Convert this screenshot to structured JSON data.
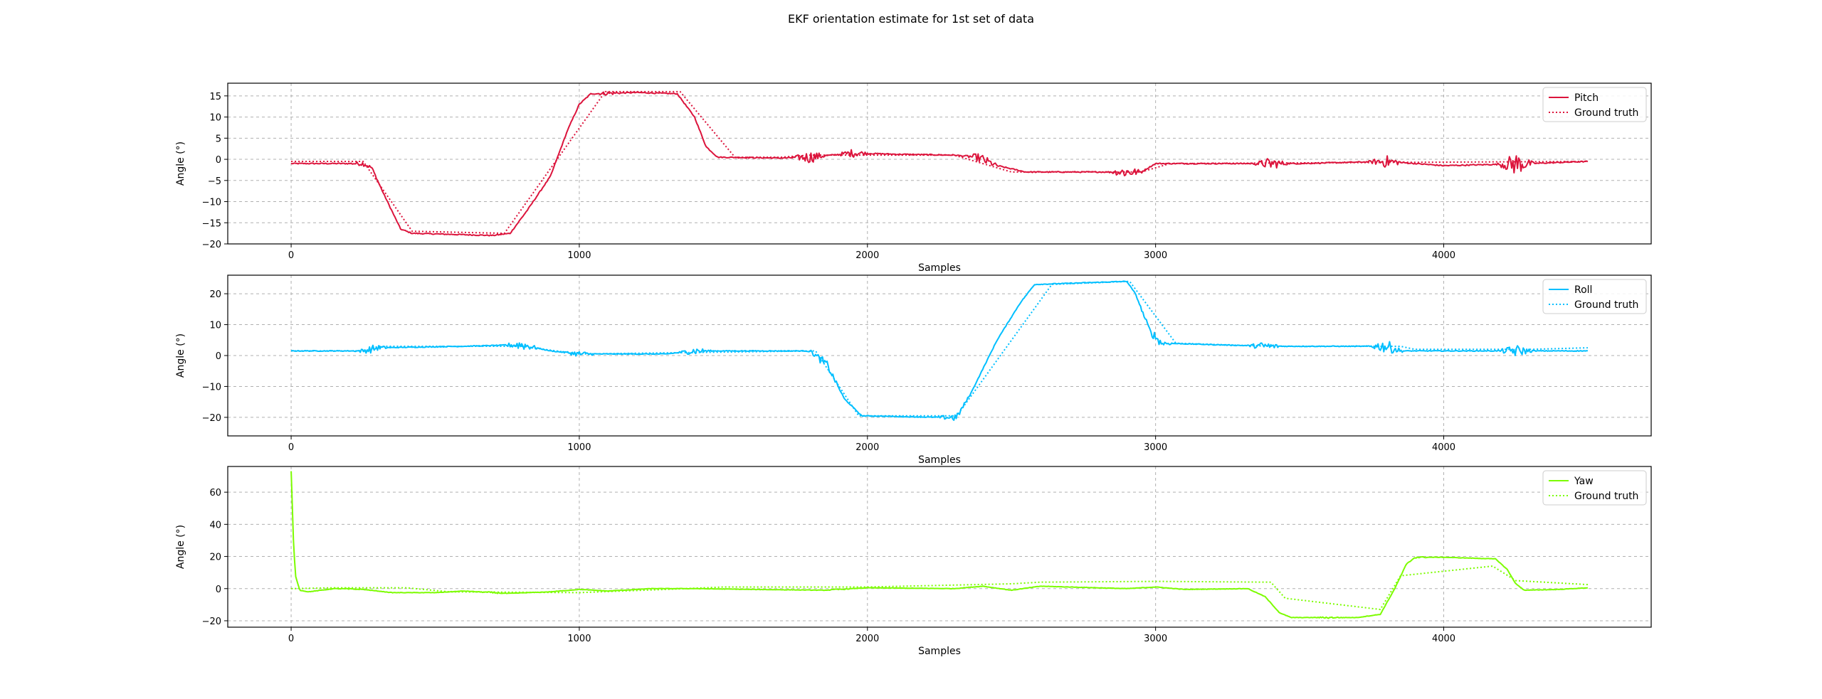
{
  "title": "EKF orientation estimate for 1st set of data",
  "chart_data": [
    {
      "type": "line",
      "xlabel": "Samples",
      "ylabel": "Angle (°)",
      "xlim": [
        -220,
        4720
      ],
      "ylim": [
        -20,
        18
      ],
      "xticks": [
        0,
        1000,
        2000,
        3000,
        4000
      ],
      "yticks": [
        -20,
        -15,
        -10,
        -5,
        0,
        5,
        10,
        15
      ],
      "grid": true,
      "legend_position": "top-right",
      "series": [
        {
          "name": "Pitch",
          "color": "#dc143c",
          "style": "solid",
          "noise": [
            [
              250,
              1.2
            ],
            [
              1100,
              1.0
            ],
            [
              1800,
              3.0
            ],
            [
              1950,
              2.0
            ],
            [
              2400,
              2.5
            ],
            [
              2900,
              3.0
            ],
            [
              3400,
              3.0
            ],
            [
              3800,
              3.0
            ],
            [
              4250,
              5.5
            ]
          ],
          "points": [
            [
              0,
              -1
            ],
            [
              250,
              -1
            ],
            [
              280,
              -2
            ],
            [
              320,
              -8
            ],
            [
              380,
              -16.5
            ],
            [
              420,
              -17.5
            ],
            [
              700,
              -18
            ],
            [
              760,
              -17.5
            ],
            [
              820,
              -12
            ],
            [
              900,
              -4
            ],
            [
              960,
              7
            ],
            [
              1000,
              13
            ],
            [
              1040,
              15.5
            ],
            [
              1200,
              15.8
            ],
            [
              1340,
              15.5
            ],
            [
              1400,
              10
            ],
            [
              1440,
              3
            ],
            [
              1480,
              0.5
            ],
            [
              1700,
              0.3
            ],
            [
              1800,
              0.5
            ],
            [
              1950,
              1.5
            ],
            [
              2100,
              1.2
            ],
            [
              2300,
              1.0
            ],
            [
              2380,
              0.5
            ],
            [
              2450,
              -1.5
            ],
            [
              2550,
              -3
            ],
            [
              2700,
              -3
            ],
            [
              2950,
              -3
            ],
            [
              3000,
              -1
            ],
            [
              3500,
              -1
            ],
            [
              3800,
              -0.5
            ],
            [
              4000,
              -1.5
            ],
            [
              4300,
              -1
            ],
            [
              4500,
              -0.5
            ]
          ]
        },
        {
          "name": "Ground truth",
          "color": "#dc143c",
          "style": "dotted",
          "points": [
            [
              0,
              -0.5
            ],
            [
              250,
              -0.5
            ],
            [
              420,
              -17
            ],
            [
              740,
              -17.5
            ],
            [
              1090,
              16
            ],
            [
              1350,
              16
            ],
            [
              1540,
              0.5
            ],
            [
              1700,
              0.5
            ],
            [
              1800,
              1
            ],
            [
              2300,
              1
            ],
            [
              2500,
              -3
            ],
            [
              2950,
              -3
            ],
            [
              3050,
              -1
            ],
            [
              4500,
              -0.5
            ]
          ]
        }
      ]
    },
    {
      "type": "line",
      "xlabel": "Samples",
      "ylabel": "Angle (°)",
      "xlim": [
        -220,
        4720
      ],
      "ylim": [
        -26,
        26
      ],
      "xticks": [
        0,
        1000,
        2000,
        3000,
        4000
      ],
      "yticks": [
        -20,
        -10,
        0,
        10,
        20
      ],
      "grid": true,
      "legend_position": "top-right",
      "series": [
        {
          "name": "Roll",
          "color": "#00bfff",
          "style": "solid",
          "noise": [
            [
              280,
              2.5
            ],
            [
              800,
              3.5
            ],
            [
              1000,
              2.0
            ],
            [
              1400,
              2.5
            ],
            [
              1850,
              3.0
            ],
            [
              2300,
              2.5
            ],
            [
              3000,
              3.0
            ],
            [
              3380,
              3.0
            ],
            [
              3800,
              4.5
            ],
            [
              4250,
              4.0
            ]
          ],
          "points": [
            [
              0,
              1.5
            ],
            [
              250,
              1.5
            ],
            [
              300,
              2.5
            ],
            [
              600,
              3
            ],
            [
              800,
              3.5
            ],
            [
              900,
              1.5
            ],
            [
              1000,
              0.5
            ],
            [
              1300,
              0.5
            ],
            [
              1400,
              1.5
            ],
            [
              1800,
              1.5
            ],
            [
              1860,
              -3
            ],
            [
              1920,
              -14
            ],
            [
              1980,
              -19.5
            ],
            [
              2250,
              -20
            ],
            [
              2310,
              -20
            ],
            [
              2360,
              -12
            ],
            [
              2450,
              5
            ],
            [
              2530,
              17
            ],
            [
              2580,
              23
            ],
            [
              2900,
              24
            ],
            [
              2930,
              20
            ],
            [
              2980,
              8
            ],
            [
              3020,
              4
            ],
            [
              3400,
              3
            ],
            [
              3800,
              3
            ],
            [
              3850,
              1.5
            ],
            [
              4300,
              1.5
            ],
            [
              4500,
              1.5
            ]
          ]
        },
        {
          "name": "Ground truth",
          "color": "#00bfff",
          "style": "dotted",
          "points": [
            [
              0,
              1.5
            ],
            [
              270,
              1.5
            ],
            [
              300,
              3
            ],
            [
              800,
              3
            ],
            [
              1000,
              0.5
            ],
            [
              1400,
              1
            ],
            [
              1820,
              1.5
            ],
            [
              1970,
              -19.5
            ],
            [
              2310,
              -19.5
            ],
            [
              2640,
              23
            ],
            [
              2910,
              24
            ],
            [
              3070,
              4
            ],
            [
              3400,
              3
            ],
            [
              3850,
              3
            ],
            [
              3900,
              2
            ],
            [
              4300,
              2
            ],
            [
              4500,
              2.5
            ]
          ]
        }
      ]
    },
    {
      "type": "line",
      "xlabel": "Samples",
      "ylabel": "Angle (°)",
      "xlim": [
        -220,
        4720
      ],
      "ylim": [
        -24,
        76
      ],
      "xticks": [
        0,
        1000,
        2000,
        3000,
        4000
      ],
      "yticks": [
        -20,
        0,
        20,
        40,
        60
      ],
      "grid": true,
      "legend_position": "top-right",
      "series": [
        {
          "name": "Yaw",
          "color": "#7cfc00",
          "style": "solid",
          "noise": [
            [
              200,
              0.8
            ],
            [
              700,
              1.0
            ],
            [
              1900,
              0.8
            ],
            [
              3600,
              1.2
            ],
            [
              3900,
              1.2
            ]
          ],
          "points": [
            [
              0,
              73
            ],
            [
              8,
              30
            ],
            [
              15,
              8
            ],
            [
              30,
              -1
            ],
            [
              60,
              -2
            ],
            [
              150,
              0
            ],
            [
              250,
              -0.5
            ],
            [
              350,
              -2.5
            ],
            [
              500,
              -2.5
            ],
            [
              600,
              -1.5
            ],
            [
              750,
              -3
            ],
            [
              900,
              -2
            ],
            [
              1000,
              -0.5
            ],
            [
              1100,
              -1.5
            ],
            [
              1250,
              0
            ],
            [
              1400,
              0
            ],
            [
              1600,
              -0.5
            ],
            [
              1850,
              -1
            ],
            [
              2000,
              0.5
            ],
            [
              2300,
              0
            ],
            [
              2400,
              1.5
            ],
            [
              2500,
              -1
            ],
            [
              2600,
              1.5
            ],
            [
              2900,
              0
            ],
            [
              3000,
              1
            ],
            [
              3100,
              -0.5
            ],
            [
              3320,
              0
            ],
            [
              3380,
              -5
            ],
            [
              3430,
              -15
            ],
            [
              3470,
              -18
            ],
            [
              3600,
              -18
            ],
            [
              3700,
              -18
            ],
            [
              3780,
              -16
            ],
            [
              3830,
              0
            ],
            [
              3870,
              15
            ],
            [
              3900,
              19.5
            ],
            [
              4000,
              19.5
            ],
            [
              4180,
              18.5
            ],
            [
              4220,
              12
            ],
            [
              4250,
              3
            ],
            [
              4280,
              -1
            ],
            [
              4400,
              -0.5
            ],
            [
              4500,
              0.5
            ]
          ]
        },
        {
          "name": "Ground truth",
          "color": "#7cfc00",
          "style": "dotted",
          "points": [
            [
              0,
              0
            ],
            [
              150,
              0.5
            ],
            [
              400,
              0.5
            ],
            [
              550,
              -2
            ],
            [
              1000,
              -2.5
            ],
            [
              1300,
              -0.5
            ],
            [
              1500,
              1
            ],
            [
              2000,
              1
            ],
            [
              2500,
              3
            ],
            [
              2600,
              4
            ],
            [
              3000,
              4.5
            ],
            [
              3400,
              4
            ],
            [
              3450,
              -6
            ],
            [
              3780,
              -13
            ],
            [
              3850,
              8
            ],
            [
              4170,
              14
            ],
            [
              4250,
              5
            ],
            [
              4500,
              2.5
            ]
          ]
        }
      ]
    }
  ]
}
